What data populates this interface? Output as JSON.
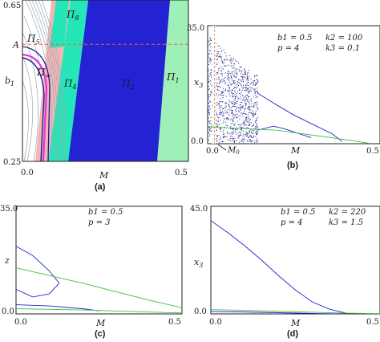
{
  "captions": {
    "a": "(a)",
    "b": "(b)",
    "c": "(c)",
    "d": "(d)"
  },
  "colors": {
    "blue": "#2323d4",
    "navy": "#1e1e8c",
    "teal": "#25e6b8",
    "mint": "#9ff0b8",
    "pink": "#f2b6b6",
    "magenta": "#e533e5",
    "green": "#3cc43c",
    "dashed_red": "#ff5a28",
    "orange_marker": "#e69a50",
    "region_label_yellow": "#ffe25a",
    "region_label_navy": "#1e1e8c"
  },
  "chart_data": [
    {
      "id": "a",
      "type": "heatmap",
      "title": "",
      "xlabel": "M",
      "ylabel": "b1",
      "xlim": [
        0.0,
        0.5
      ],
      "ylim": [
        0.25,
        0.65
      ],
      "x_ticks": [
        "0.0",
        "0.5"
      ],
      "y_ticks": [
        "0.25",
        "0.65"
      ],
      "marker_label": "A",
      "marker_b1": 0.54,
      "regions": [
        {
          "label": "Π1",
          "color": "#9ff0b8"
        },
        {
          "label": "Π2",
          "color": "#2323d4"
        },
        {
          "label": "Π4",
          "color": "#25e6b8"
        },
        {
          "label": "Π5",
          "color": "#ffffff"
        },
        {
          "label": "Π8",
          "color": "#25e6b8"
        },
        {
          "label": "Π∞",
          "color": "#e533e5"
        }
      ],
      "boundaries": {
        "b1": [
          0.65,
          0.25
        ],
        "pi2_left_M": [
          0.23,
          0.18
        ],
        "pi2_right_M": [
          0.475,
          0.44
        ],
        "pi1_right_M": [
          0.5,
          0.5
        ]
      }
    },
    {
      "id": "b",
      "type": "scatter",
      "xlabel": "M",
      "ylabel": "x3",
      "xlim": [
        0.0,
        0.5
      ],
      "ylim": [
        0.0,
        35.0
      ],
      "x_ticks": [
        "0.0",
        "0.5"
      ],
      "y_ticks": [
        "0.0",
        "35.0"
      ],
      "params": [
        "b1 = 0.5",
        "p = 4",
        "k2 = 100",
        "k3 = 0.1"
      ],
      "annotation": "M0",
      "M0": 0.02,
      "chaos_range_M": [
        0.0,
        0.145
      ],
      "series": [
        {
          "color": "#2323d4",
          "x": [
            0.145,
            0.2,
            0.25,
            0.3,
            0.36,
            0.39
          ],
          "y": [
            15,
            11.5,
            8.5,
            6,
            3,
            0.7
          ]
        },
        {
          "color": "#2323d4",
          "x": [
            0.145,
            0.19,
            0.22,
            0.25,
            0.3
          ],
          "y": [
            4,
            5.2,
            4.5,
            3.5,
            1.8
          ]
        },
        {
          "color": "#3cc43c",
          "x": [
            0.0,
            0.2,
            0.4,
            0.47
          ],
          "y": [
            5,
            4,
            1.2,
            0.1
          ]
        }
      ]
    },
    {
      "id": "c",
      "type": "line",
      "xlabel": "M",
      "ylabel": "z",
      "xlim": [
        0.0,
        0.5
      ],
      "ylim": [
        0.0,
        35.0
      ],
      "x_ticks": [
        "0.0",
        "0.5"
      ],
      "y_ticks": [
        "0.0",
        "35.0"
      ],
      "params": [
        "b1 = 0.5",
        "p = 3"
      ],
      "series": [
        {
          "color": "#2323d4",
          "x": [
            0.0,
            0.05,
            0.1,
            0.13
          ],
          "y": [
            22,
            19,
            14,
            10
          ]
        },
        {
          "color": "#2323d4",
          "x": [
            0.0,
            0.05,
            0.1,
            0.13
          ],
          "y": [
            8,
            5.5,
            6.5,
            10
          ]
        },
        {
          "color": "#3cc43c",
          "x": [
            0.0,
            0.2,
            0.4,
            0.5
          ],
          "y": [
            15,
            10,
            4.5,
            2
          ]
        },
        {
          "color": "#2323d4",
          "x": [
            0.0,
            0.1,
            0.2,
            0.25
          ],
          "y": [
            3,
            2.6,
            1.7,
            1.0
          ]
        },
        {
          "color": "#3cc43c",
          "x": [
            0.0,
            0.2,
            0.4,
            0.5
          ],
          "y": [
            1.7,
            1.3,
            0.6,
            0.3
          ]
        }
      ]
    },
    {
      "id": "d",
      "type": "line",
      "xlabel": "M",
      "ylabel": "x3",
      "xlim": [
        0.0,
        0.5
      ],
      "ylim": [
        0.0,
        45.0
      ],
      "x_ticks": [
        "0.0",
        "0.5"
      ],
      "y_ticks": [
        "0.0",
        "45.0"
      ],
      "params": [
        "b1 = 0.5",
        "p = 4",
        "k2 = 220",
        "k3 = 1.5"
      ],
      "series": [
        {
          "color": "#2323d4",
          "x": [
            0.0,
            0.05,
            0.1,
            0.15,
            0.2,
            0.25,
            0.3,
            0.35,
            0.4
          ],
          "y": [
            39,
            34,
            28.5,
            22.5,
            16,
            10,
            5,
            2,
            0.3
          ]
        },
        {
          "color": "#3cc43c",
          "x": [
            0.0,
            0.1,
            0.2,
            0.3,
            0.4,
            0.5
          ],
          "y": [
            1.8,
            1.5,
            1.1,
            0.7,
            0.3,
            0.1
          ]
        },
        {
          "color": "#2323d4",
          "x": [
            0.0,
            0.1,
            0.2,
            0.3,
            0.37
          ],
          "y": [
            1.0,
            0.8,
            0.5,
            0.2,
            0.0
          ]
        }
      ]
    }
  ]
}
